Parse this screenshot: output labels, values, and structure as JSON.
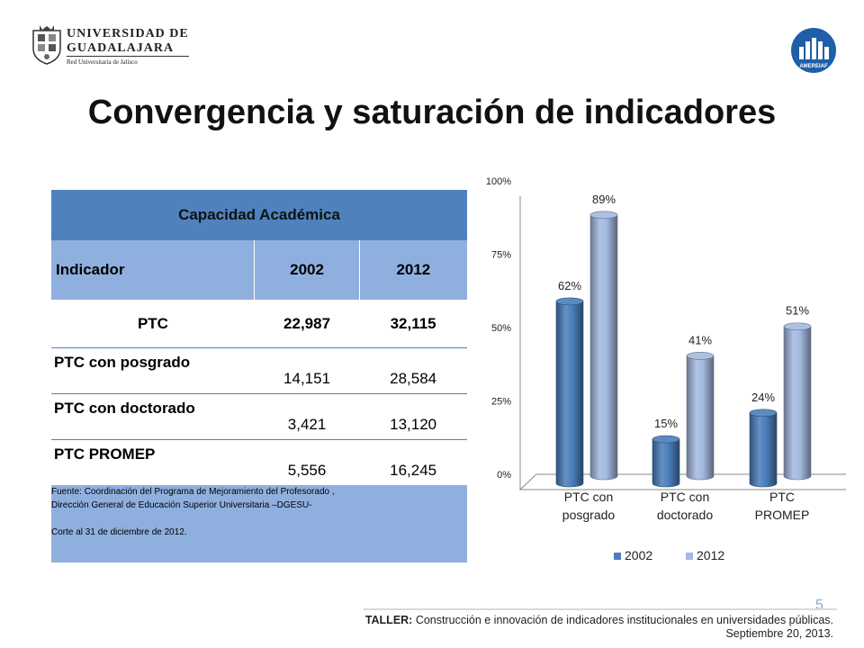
{
  "header": {
    "logo_line1": "UNIVERSIDAD DE",
    "logo_line2": "GUADALAJARA",
    "logo_line3": "Red Universitaria de Jalisco",
    "right_logo_text": "AMEREIAF"
  },
  "title": "Convergencia y saturación de indicadores",
  "table": {
    "title": "Capacidad Académica",
    "columns": [
      "Indicador",
      "2002",
      "2012"
    ],
    "rows": [
      {
        "label": "PTC",
        "v2002": "22,987",
        "v2012": "32,115"
      },
      {
        "label": "PTC con posgrado",
        "v2002": "14,151",
        "v2012": "28,584"
      },
      {
        "label": "PTC con doctorado",
        "v2002": "3,421",
        "v2012": "13,120"
      },
      {
        "label": "PTC PROMEP",
        "v2002": "5,556",
        "v2012": "16,245"
      }
    ],
    "source_line1": "Fuente:  Coordinación del Programa de Mejoramiento del Profesorado ,",
    "source_line2": "Dirección General de Educación Superior Universitaria –DGESU-",
    "source_line3": "Corte al 31 de diciembre de 2012."
  },
  "chart_data": {
    "type": "bar",
    "categories": [
      [
        "PTC con",
        "posgrado"
      ],
      [
        "PTC con",
        "doctorado"
      ],
      [
        "PTC",
        "PROMEP"
      ]
    ],
    "series": [
      {
        "name": "2002",
        "values": [
          62,
          15,
          24
        ],
        "labels": [
          "62%",
          "15%",
          "24%"
        ],
        "color": "#4a7ebb"
      },
      {
        "name": "2012",
        "values": [
          89,
          41,
          51
        ],
        "labels": [
          "89%",
          "41%",
          "51%"
        ],
        "color": "#a3b9df"
      }
    ],
    "yticks": [
      "0%",
      "25%",
      "50%",
      "75%",
      "100%"
    ],
    "ylim": [
      0,
      100
    ],
    "legend": "bottom",
    "grid": false
  },
  "footer": {
    "page_number": "5",
    "line1_bold": "TALLER:",
    "line1_rest": " Construcción e innovación de indicadores institucionales en universidades públicas.",
    "line2": "Septiembre 20, 2013."
  }
}
